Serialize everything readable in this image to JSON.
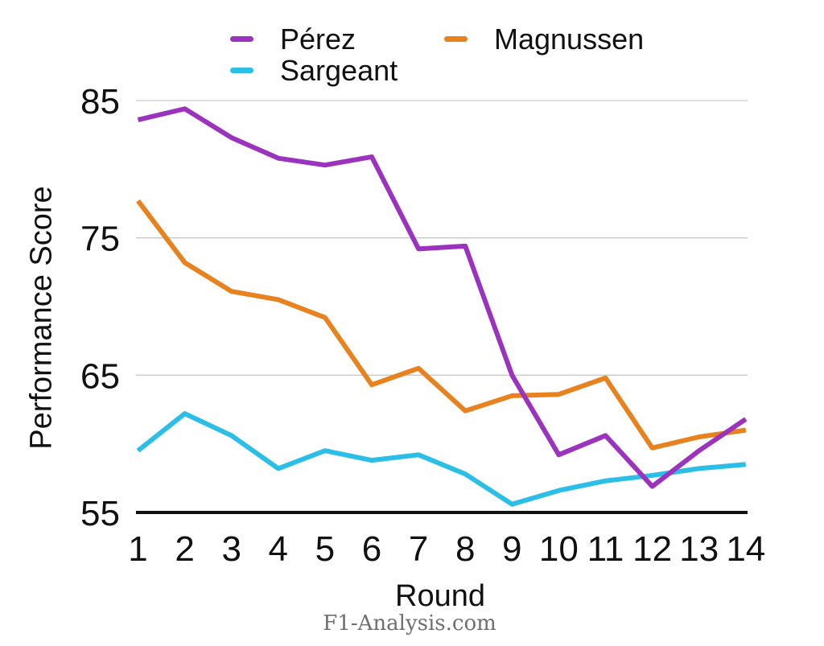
{
  "page": {
    "watermark": "F1-Analysis.com"
  },
  "chart_data": {
    "type": "line",
    "title": "",
    "xlabel": "Round",
    "ylabel": "Performance Score",
    "x": [
      1,
      2,
      3,
      4,
      5,
      6,
      7,
      8,
      9,
      10,
      11,
      12,
      13,
      14
    ],
    "yticks": [
      55,
      65,
      75,
      85
    ],
    "ylim": [
      55,
      87
    ],
    "grid": true,
    "colors": {
      "axis": "#111111",
      "gridline": "#C9C9C9",
      "watermark": "#6F6F6F"
    },
    "legend": {
      "position": "top",
      "display_order": [
        "Pérez",
        "Magnussen",
        "Sargeant"
      ]
    },
    "series": [
      {
        "name": "Pérez",
        "color": "#9B33BE",
        "values": [
          83.6,
          84.4,
          82.3,
          80.8,
          80.3,
          80.9,
          74.2,
          74.4,
          65.0,
          59.2,
          60.6,
          56.9,
          59.5,
          61.8
        ]
      },
      {
        "name": "Magnussen",
        "color": "#E8821E",
        "values": [
          77.7,
          73.2,
          71.1,
          70.5,
          69.2,
          64.3,
          65.5,
          62.4,
          63.5,
          63.6,
          64.8,
          59.7,
          60.5,
          61.0
        ]
      },
      {
        "name": "Sargeant",
        "color": "#2BBFE8",
        "values": [
          59.5,
          62.2,
          60.6,
          58.2,
          59.5,
          58.8,
          59.2,
          57.8,
          55.6,
          56.6,
          57.3,
          57.7,
          58.2,
          58.5
        ]
      }
    ]
  }
}
